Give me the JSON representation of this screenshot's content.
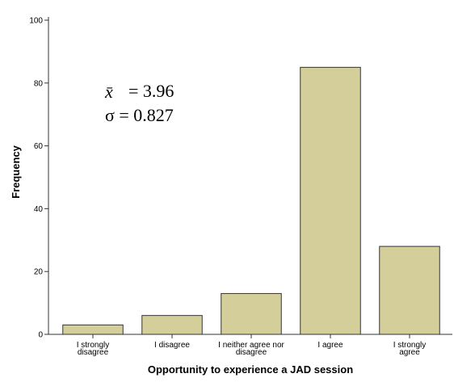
{
  "chart_data": {
    "type": "bar",
    "title": "",
    "xlabel": "Opportunity to experience a JAD session",
    "ylabel": "Frequency",
    "categories": [
      [
        "I strongly",
        "disagree"
      ],
      [
        "I disagree"
      ],
      [
        "I neither agree nor",
        "disagree"
      ],
      [
        "I agree"
      ],
      [
        "I strongly",
        "agree"
      ]
    ],
    "values": [
      3,
      6,
      13,
      85,
      28
    ],
    "ylim": [
      0,
      100
    ],
    "yticks": [
      0,
      20,
      40,
      60,
      80,
      100
    ],
    "grid": false,
    "bar_color": "#d4cf9a",
    "bar_edge_color": "#333333",
    "annotations": {
      "mean_symbol": "x̄",
      "mean_label": "= 3.96",
      "sd_label": "σ = 0.827"
    }
  }
}
